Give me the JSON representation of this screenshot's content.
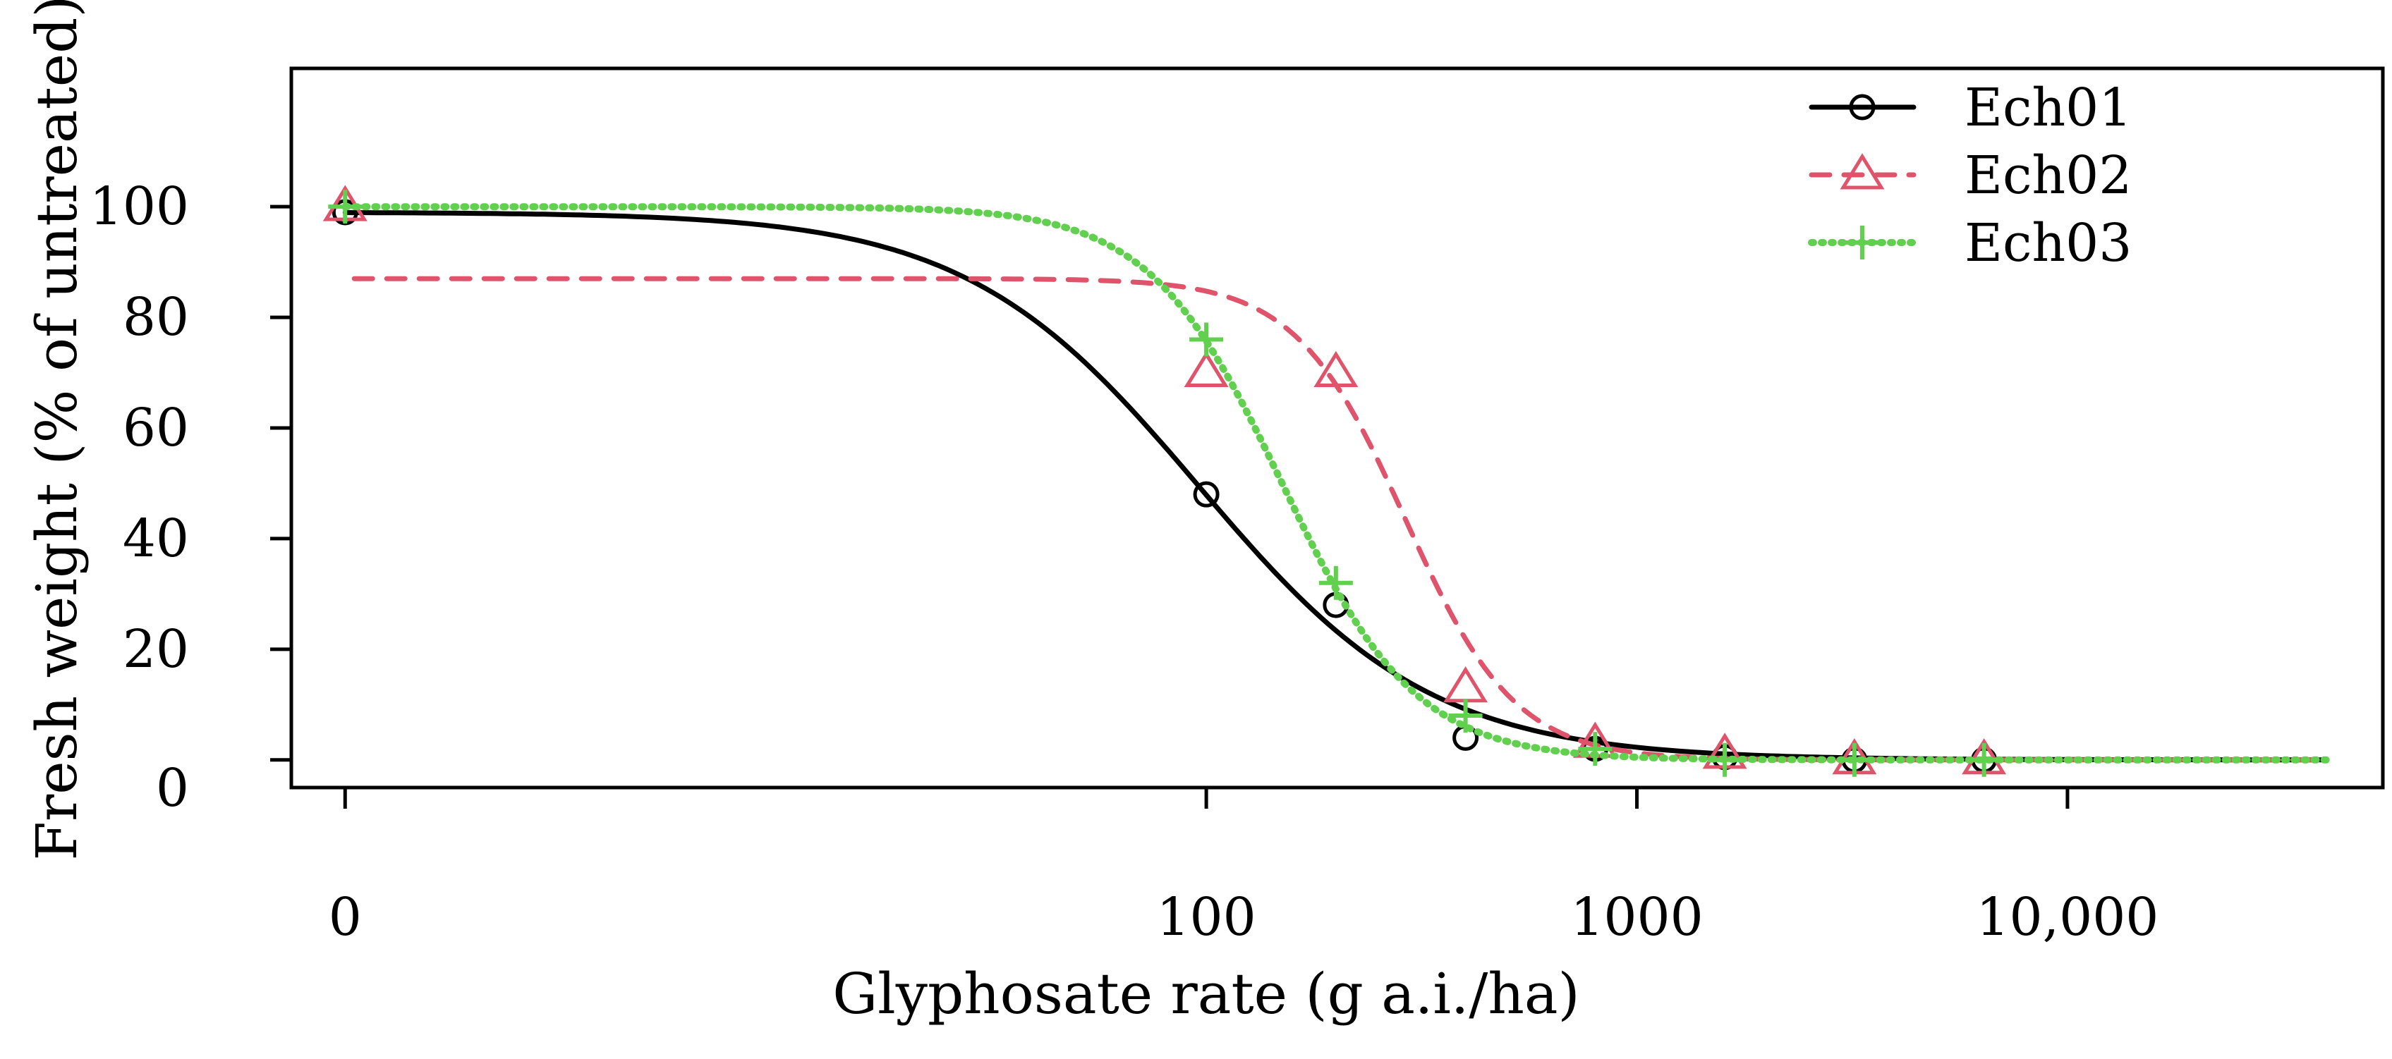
{
  "chart_data": {
    "type": "line",
    "title": "",
    "xlabel": "Glyphosate rate (g a.i./ha)",
    "ylabel": "Fresh weight (% of untreated)",
    "x_scale": "log10 (0 plotted at 1)",
    "xlim": [
      0.75,
      54000
    ],
    "ylim": [
      -5,
      125
    ],
    "x_ticks": [
      {
        "value": 1,
        "label": "0"
      },
      {
        "value": 100,
        "label": "100"
      },
      {
        "value": 1000,
        "label": "1000"
      },
      {
        "value": 10000,
        "label": "10,000"
      }
    ],
    "y_ticks": [
      {
        "value": 0,
        "label": "0"
      },
      {
        "value": 20,
        "label": "20"
      },
      {
        "value": 40,
        "label": "40"
      },
      {
        "value": 60,
        "label": "60"
      },
      {
        "value": 80,
        "label": "80"
      },
      {
        "value": 100,
        "label": "100"
      }
    ],
    "legend_position": "top-right",
    "series": [
      {
        "name": "Ech01",
        "color": "#000000",
        "line_style": "solid",
        "marker": "circle",
        "points": {
          "x": [
            1,
            100,
            200,
            400,
            800,
            1600,
            3200,
            6400
          ],
          "y": [
            99,
            48,
            28,
            4,
            2,
            0.5,
            0,
            0
          ]
        },
        "fit": {
          "model": "log-logistic",
          "c": 0,
          "d": 99,
          "ed50": 96,
          "b": 1.6,
          "x_start": 1,
          "x_end": 40000
        }
      },
      {
        "name": "Ech02",
        "color": "#DF536B",
        "line_style": "dashed",
        "marker": "triangle",
        "points": {
          "x": [
            1,
            100,
            200,
            400,
            800,
            1600,
            3200,
            6400
          ],
          "y": [
            100,
            70,
            70,
            13,
            3,
            1,
            0,
            0
          ]
        },
        "fit": {
          "model": "log-logistic",
          "c": 0,
          "d": 87,
          "ed50": 290,
          "b": 3.4,
          "x_start": 1.05,
          "x_end": 40000
        }
      },
      {
        "name": "Ech03",
        "color": "#61D04F",
        "line_style": "dotted",
        "marker": "plus",
        "points": {
          "x": [
            1,
            100,
            200,
            400,
            800,
            1600,
            3200,
            6400
          ],
          "y": [
            100,
            76,
            32,
            8,
            2,
            0,
            0,
            0
          ]
        },
        "fit": {
          "model": "log-logistic",
          "c": 0,
          "d": 100,
          "ed50": 150,
          "b": 2.8,
          "x_start": 1,
          "x_end": 40000
        }
      }
    ]
  }
}
